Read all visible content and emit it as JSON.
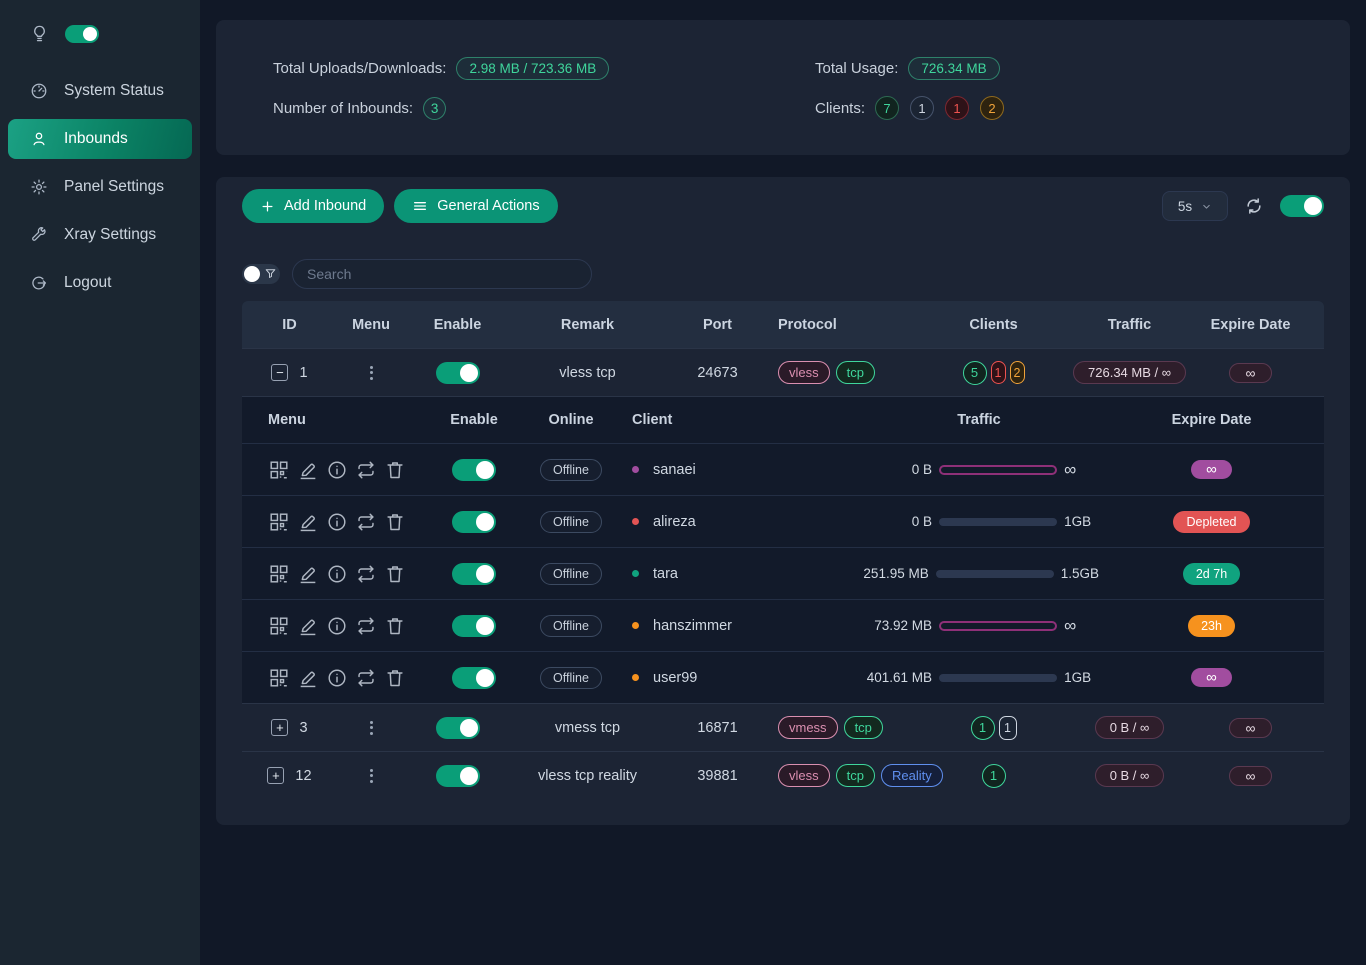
{
  "colors": {
    "accent_green": "#0b9476",
    "toggle_green": "#0a9e78",
    "badge_purple": "#a14d9f",
    "badge_red": "#e25454",
    "badge_green": "#10a37f",
    "badge_orange": "#f6921e",
    "bar_outline_purple": "#8e3078"
  },
  "sidebar": {
    "items": [
      {
        "label": "System Status"
      },
      {
        "label": "Inbounds"
      },
      {
        "label": "Panel Settings"
      },
      {
        "label": "Xray Settings"
      },
      {
        "label": "Logout"
      }
    ]
  },
  "stats": {
    "uploads_label": "Total Uploads/Downloads:",
    "uploads_value": "2.98 MB / 723.36 MB",
    "inbounds_label": "Number of Inbounds:",
    "inbounds_value": "3",
    "usage_label": "Total Usage:",
    "usage_value": "726.34 MB",
    "clients_label": "Clients:",
    "client_badges": [
      {
        "value": "7",
        "variant": "green"
      },
      {
        "value": "1",
        "variant": "gray"
      },
      {
        "value": "1",
        "variant": "red"
      },
      {
        "value": "2",
        "variant": "orange"
      }
    ]
  },
  "toolbar": {
    "add_inbound": "Add Inbound",
    "general_actions": "General Actions",
    "refresh_interval": "5s"
  },
  "search": {
    "placeholder": "Search"
  },
  "table": {
    "headers": [
      "ID",
      "Menu",
      "Enable",
      "Remark",
      "Port",
      "Protocol",
      "Clients",
      "Traffic",
      "Expire Date"
    ],
    "rows": [
      {
        "id": "1",
        "expander": "−",
        "remark": "vless tcp",
        "port": "24673",
        "protocols": [
          {
            "label": "vless",
            "variant": "pink"
          },
          {
            "label": "tcp",
            "variant": "tcp"
          }
        ],
        "clients": [
          {
            "value": "5",
            "variant": "green"
          },
          {
            "value": "1",
            "variant": "red"
          },
          {
            "value": "2",
            "variant": "orange"
          }
        ],
        "traffic": "726.34 MB / ∞",
        "expire": "∞"
      },
      {
        "id": "3",
        "expander": "+",
        "remark": "vmess tcp",
        "port": "16871",
        "protocols": [
          {
            "label": "vmess",
            "variant": "pink"
          },
          {
            "label": "tcp",
            "variant": "tcp"
          }
        ],
        "clients": [
          {
            "value": "1",
            "variant": "green"
          },
          {
            "value": "1",
            "variant": "gray"
          }
        ],
        "traffic": "0 B / ∞",
        "expire": "∞"
      },
      {
        "id": "12",
        "expander": "+",
        "remark": "vless tcp reality",
        "port": "39881",
        "protocols": [
          {
            "label": "vless",
            "variant": "pink"
          },
          {
            "label": "tcp",
            "variant": "tcp"
          },
          {
            "label": "Reality",
            "variant": "blue"
          }
        ],
        "clients": [
          {
            "value": "1",
            "variant": "green"
          }
        ],
        "traffic": "0 B / ∞",
        "expire": "∞"
      }
    ]
  },
  "client_table": {
    "headers": [
      "Menu",
      "Enable",
      "Online",
      "Client",
      "Traffic",
      "Expire Date"
    ],
    "rows": [
      {
        "online": "Offline",
        "name": "sanaei",
        "dot_color": "#a14d9f",
        "used": "0 B",
        "cap": "∞",
        "percent": 0,
        "expire_label": "∞",
        "expire_color": "#a14d9f"
      },
      {
        "online": "Offline",
        "name": "alireza",
        "dot_color": "#e25454",
        "used": "0 B",
        "cap": "1GB",
        "percent": 0,
        "fill_color": "#10a37f",
        "expire_label": "Depleted",
        "expire_color": "#e25454"
      },
      {
        "online": "Offline",
        "name": "tara",
        "dot_color": "#10a37f",
        "used": "251.95 MB",
        "cap": "1.5GB",
        "percent": 16.4,
        "fill_color": "#10a37f",
        "expire_label": "2d 7h",
        "expire_color": "#10a37f"
      },
      {
        "online": "Offline",
        "name": "hanszimmer",
        "dot_color": "#f6921e",
        "used": "73.92 MB",
        "cap": "∞",
        "percent": 0,
        "expire_label": "23h",
        "expire_color": "#f6921e"
      },
      {
        "online": "Offline",
        "name": "user99",
        "dot_color": "#f6921e",
        "used": "401.61 MB",
        "cap": "1GB",
        "percent": 39.2,
        "fill_color": "#f6921e",
        "expire_label": "∞",
        "expire_color": "#a14d9f"
      }
    ]
  }
}
